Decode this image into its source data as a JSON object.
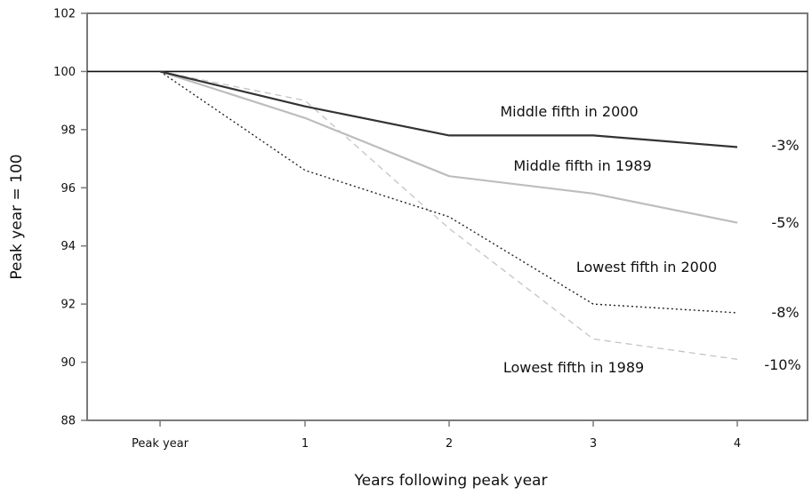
{
  "chart_data": {
    "type": "line",
    "title": "",
    "xlabel": "Years following peak year",
    "ylabel": "Peak year = 100",
    "categories": [
      "Peak year",
      "1",
      "2",
      "3",
      "4"
    ],
    "ylim": [
      88,
      102
    ],
    "yticks": [
      88,
      90,
      92,
      94,
      96,
      98,
      100,
      102
    ],
    "reference_line": 100,
    "grid": false,
    "legend": "none",
    "series": [
      {
        "name": "Middle fifth in 2000",
        "values": [
          100,
          98.8,
          97.8,
          97.8,
          97.4
        ],
        "end_label": "-3%",
        "color": "#333333",
        "style": "solid"
      },
      {
        "name": "Middle fifth in 1989",
        "values": [
          100,
          98.4,
          96.4,
          95.8,
          94.8
        ],
        "end_label": "-5%",
        "color": "#bdbdbd",
        "style": "solid"
      },
      {
        "name": "Lowest fifth in 2000",
        "values": [
          100,
          96.6,
          95.0,
          92.0,
          91.7
        ],
        "end_label": "-8%",
        "color": "#222222",
        "style": "dotted"
      },
      {
        "name": "Lowest fifth in 1989",
        "values": [
          100,
          99.0,
          94.6,
          90.8,
          90.1
        ],
        "end_label": "-10%",
        "color": "#c4c4c4",
        "style": "dashed"
      }
    ]
  }
}
